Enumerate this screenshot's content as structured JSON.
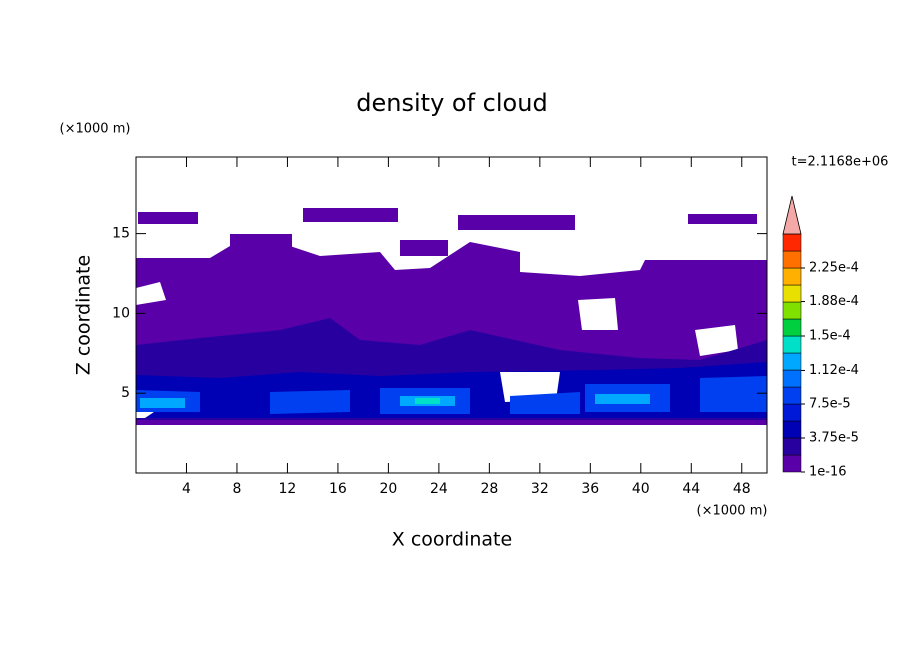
{
  "chart_data": {
    "type": "contour",
    "title": "density of cloud",
    "x_label": "X coordinate",
    "y_label": "Z coordinate",
    "x_unit": "(×1000 m)",
    "y_unit": "(×1000 m)",
    "time_label": "t=2.1168e+06",
    "xlim": [
      0,
      50
    ],
    "ylim": [
      0,
      19.8
    ],
    "xticks": [
      4,
      8,
      12,
      16,
      20,
      24,
      28,
      32,
      36,
      40,
      44,
      48
    ],
    "yticks": [
      5,
      10,
      15
    ],
    "colorbar": {
      "ticks": [
        {
          "value": 1e-16,
          "label": "1e-16"
        },
        {
          "value": 3.75e-05,
          "label": "3.75e-5"
        },
        {
          "value": 7.5e-05,
          "label": "7.5e-5"
        },
        {
          "value": 0.000112,
          "label": "1.12e-4"
        },
        {
          "value": 0.00015,
          "label": "1.5e-4"
        },
        {
          "value": 0.000188,
          "label": "1.88e-4"
        },
        {
          "value": 0.000225,
          "label": "2.25e-4"
        }
      ],
      "colors": [
        "#5a00a8",
        "#2800a0",
        "#0000b4",
        "#0018d8",
        "#0040f0",
        "#0070ff",
        "#00a8ff",
        "#00e0c8",
        "#00d040",
        "#80e000",
        "#e8e000",
        "#ffb000",
        "#ff7000",
        "#ff2800"
      ],
      "extend_color": "#f4a8a8"
    }
  }
}
